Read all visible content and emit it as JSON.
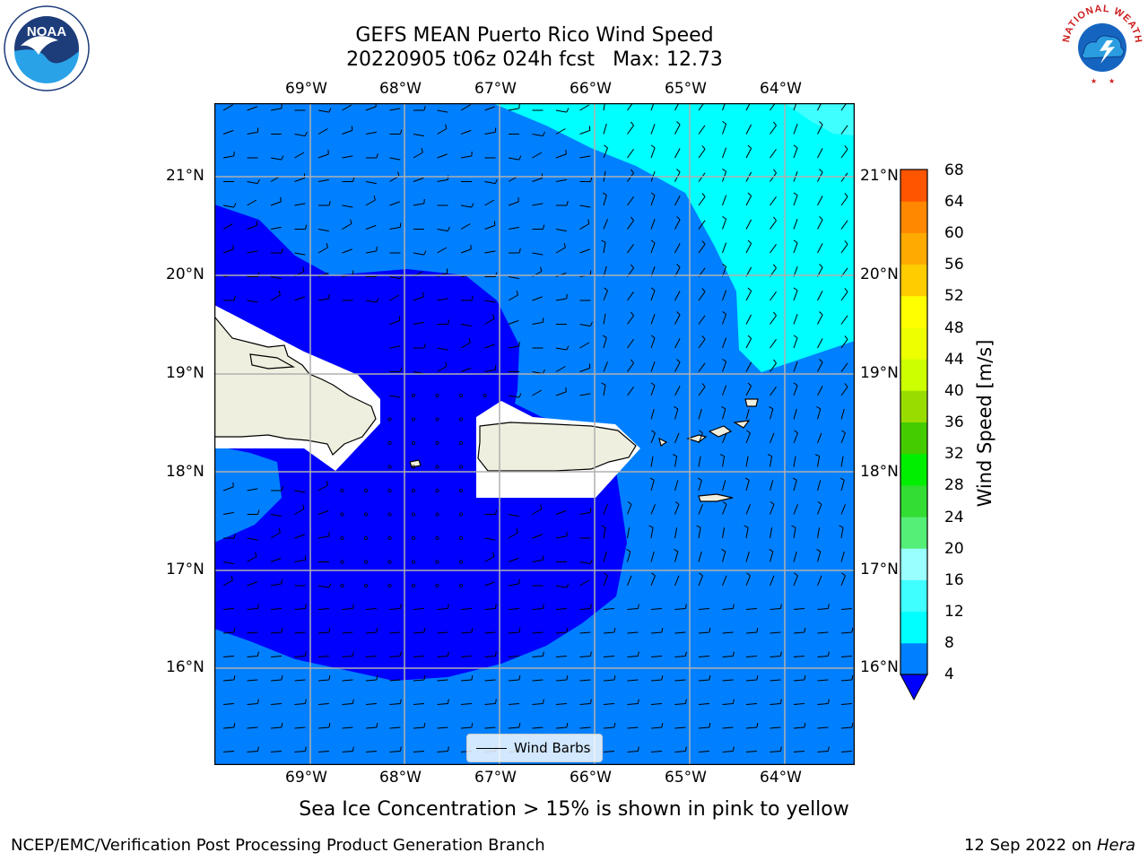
{
  "title": {
    "line1": "GEFS MEAN Puerto Rico Wind Speed",
    "line2_left": "20220905 t06z 024h fcst",
    "line2_right": "Max: 12.73"
  },
  "map": {
    "lon_labels": [
      "69°W",
      "68°W",
      "67°W",
      "66°W",
      "65°W",
      "64°W"
    ],
    "lat_labels": [
      "21°N",
      "20°N",
      "19°N",
      "18°N",
      "17°N",
      "16°N"
    ],
    "extent": {
      "lon": [
        -70.0,
        -63.25
      ],
      "lat": [
        15.0,
        21.75
      ]
    },
    "land_color": "#efefdf",
    "mask_color": "#ffffff",
    "grid_color": "#b0b0b0"
  },
  "colorbar": {
    "title": "Wind Speed [m/s]",
    "ticks": [
      "68",
      "64",
      "60",
      "56",
      "52",
      "48",
      "44",
      "40",
      "36",
      "32",
      "28",
      "24",
      "20",
      "16",
      "12",
      "8",
      "4"
    ],
    "levels": [
      4,
      8,
      12,
      16,
      20,
      24,
      28,
      32,
      36,
      40,
      44,
      48,
      52,
      56,
      60,
      64,
      68
    ],
    "colors": [
      "#0080ff",
      "#00ffff",
      "#40ffff",
      "#99ffff",
      "#55ee77",
      "#33dd33",
      "#00ee00",
      "#44cc00",
      "#99dd00",
      "#ccff00",
      "#eeff00",
      "#ffff00",
      "#ffcc00",
      "#ffaa00",
      "#ff8800",
      "#ff5500",
      "#ff2200"
    ],
    "under_color": "#0000ff"
  },
  "legend": {
    "label": "Wind Barbs"
  },
  "caption": "Sea Ice Concentration > 15% is shown in pink to yellow",
  "footer": {
    "left": "NCEP/EMC/Verification Post Processing Product Generation Branch",
    "right_prefix": "12 Sep 2022 on",
    "right_italic": "Hera"
  },
  "logos": {
    "left": "NOAA",
    "right": "NATIONAL WEATHER SERVICE"
  }
}
